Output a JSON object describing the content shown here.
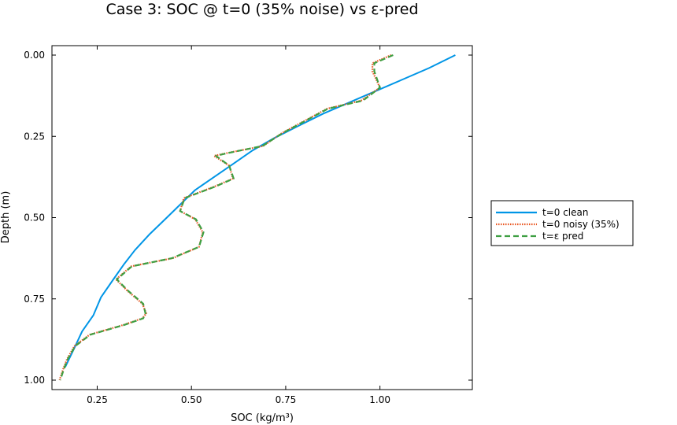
{
  "chart_data": {
    "type": "line",
    "title": "Case 3: SOC @ t=0 (35% noise) vs ε-pred",
    "xlabel": "SOC (kg/m³)",
    "ylabel": "Depth (m)",
    "xlim": [
      0.13,
      1.245
    ],
    "ylim": [
      0.0,
      1.0
    ],
    "y_inverted": true,
    "x_ticks": [
      0.25,
      0.5,
      0.75,
      1.0
    ],
    "x_tick_labels": [
      "0.25",
      "0.50",
      "0.75",
      "1.00"
    ],
    "y_ticks": [
      0.0,
      0.25,
      0.5,
      0.75,
      1.0
    ],
    "y_tick_labels": [
      "0.00",
      "0.25",
      "0.50",
      "0.75",
      "1.00"
    ],
    "grid": false,
    "legend_position": "outer-right",
    "series": [
      {
        "name": "t=0 clean",
        "color": "#0095e6",
        "style": "solid",
        "x": [
          1.2,
          1.13,
          1.06,
          0.99,
          0.92,
          0.85,
          0.78,
          0.72,
          0.66,
          0.61,
          0.56,
          0.51,
          0.47,
          0.43,
          0.39,
          0.35,
          0.32,
          0.29,
          0.26,
          0.24,
          0.21,
          0.19,
          0.165
        ],
        "y": [
          0.0,
          0.04,
          0.075,
          0.11,
          0.145,
          0.18,
          0.22,
          0.255,
          0.295,
          0.335,
          0.375,
          0.415,
          0.46,
          0.505,
          0.55,
          0.6,
          0.645,
          0.695,
          0.745,
          0.8,
          0.85,
          0.9,
          0.96
        ]
      },
      {
        "name": "t=0 noisy (35%)",
        "color": "#e9541f",
        "style": "dotted",
        "x": [
          1.03,
          0.98,
          0.98,
          1.0,
          0.95,
          0.86,
          0.74,
          0.69,
          0.6,
          0.56,
          0.6,
          0.61,
          0.56,
          0.48,
          0.47,
          0.51,
          0.53,
          0.52,
          0.45,
          0.34,
          0.3,
          0.33,
          0.37,
          0.38,
          0.37,
          0.32,
          0.23,
          0.19,
          0.17,
          0.16,
          0.15
        ],
        "y": [
          0.0,
          0.025,
          0.05,
          0.1,
          0.14,
          0.165,
          0.24,
          0.28,
          0.3,
          0.31,
          0.34,
          0.38,
          0.405,
          0.44,
          0.48,
          0.505,
          0.545,
          0.59,
          0.625,
          0.65,
          0.69,
          0.725,
          0.765,
          0.795,
          0.81,
          0.83,
          0.86,
          0.895,
          0.935,
          0.965,
          1.0
        ]
      },
      {
        "name": "t=ε pred",
        "color": "#3e9f42",
        "style": "dashed",
        "x": [
          1.035,
          0.985,
          0.985,
          1.0,
          0.955,
          0.862,
          0.742,
          0.688,
          0.602,
          0.565,
          0.6,
          0.612,
          0.562,
          0.482,
          0.47,
          0.512,
          0.532,
          0.52,
          0.448,
          0.342,
          0.302,
          0.332,
          0.372,
          0.378,
          0.372,
          0.322,
          0.232,
          0.192,
          0.172,
          0.162,
          0.152
        ],
        "y": [
          0.0,
          0.025,
          0.05,
          0.1,
          0.14,
          0.165,
          0.24,
          0.28,
          0.3,
          0.31,
          0.34,
          0.38,
          0.405,
          0.44,
          0.48,
          0.505,
          0.545,
          0.59,
          0.625,
          0.65,
          0.69,
          0.725,
          0.765,
          0.795,
          0.81,
          0.83,
          0.86,
          0.895,
          0.935,
          0.965,
          1.0
        ]
      }
    ]
  }
}
